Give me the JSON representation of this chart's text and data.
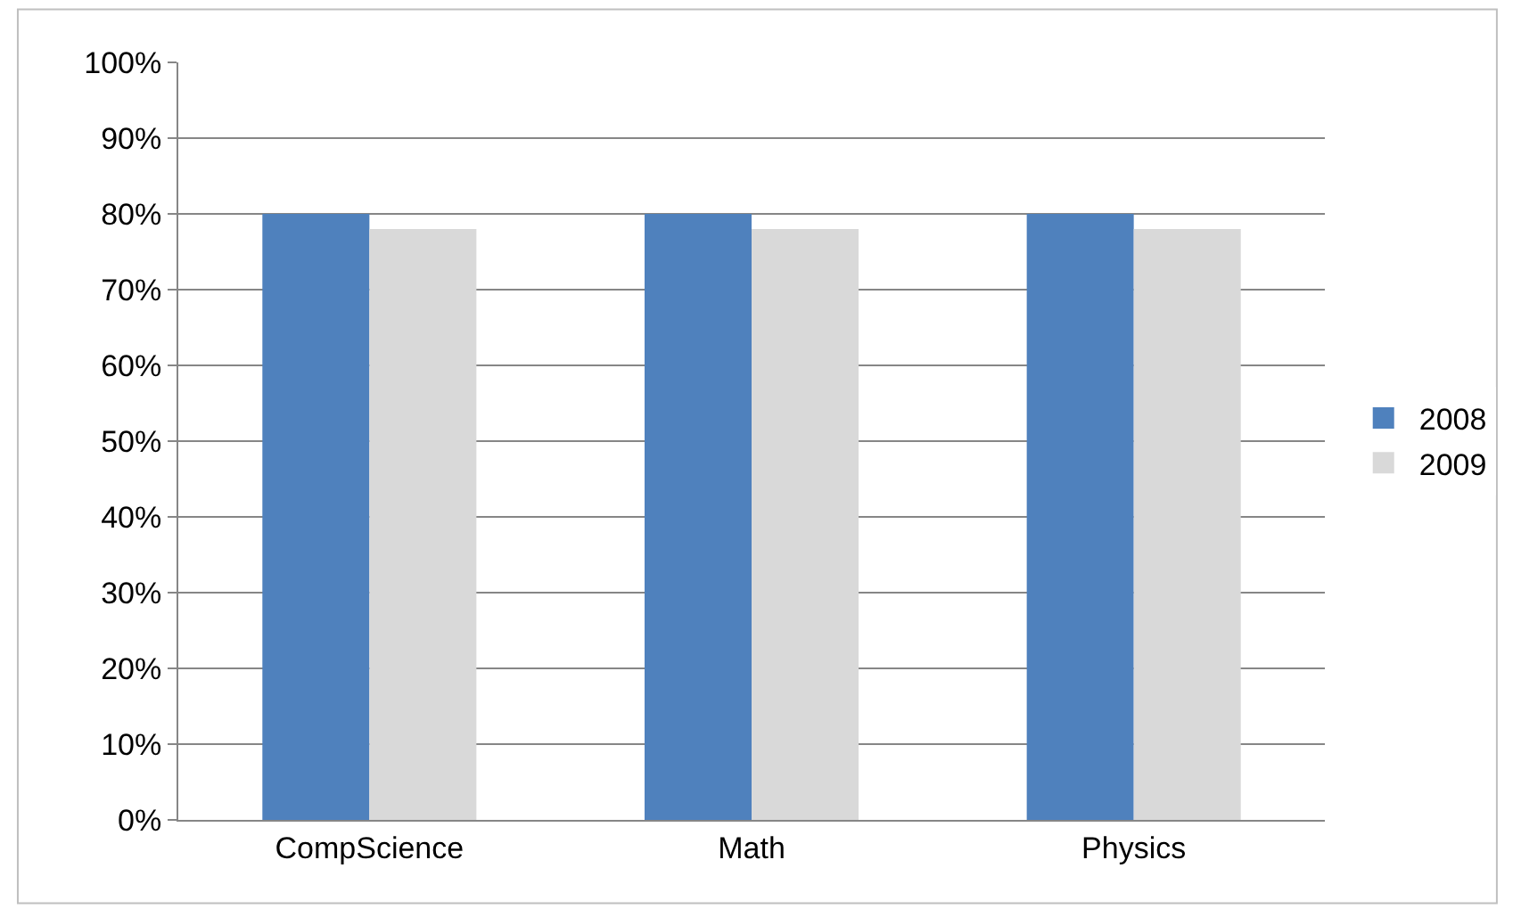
{
  "chart_data": {
    "type": "bar",
    "categories": [
      "CompScience",
      "Math",
      "Physics"
    ],
    "series": [
      {
        "name": "2008",
        "color": "#4f81bd",
        "values": [
          80,
          80,
          80
        ]
      },
      {
        "name": "2009",
        "color": "#d9d9d9",
        "values": [
          78,
          78,
          78
        ]
      }
    ],
    "ylim": [
      0,
      100
    ],
    "yticks": [
      {
        "value": 0,
        "label": "0%"
      },
      {
        "value": 10,
        "label": "10%"
      },
      {
        "value": 20,
        "label": "20%"
      },
      {
        "value": 30,
        "label": "30%"
      },
      {
        "value": 40,
        "label": "40%"
      },
      {
        "value": 50,
        "label": "50%"
      },
      {
        "value": 60,
        "label": "60%"
      },
      {
        "value": 70,
        "label": "70%"
      },
      {
        "value": 80,
        "label": "80%"
      },
      {
        "value": 90,
        "label": "90%"
      },
      {
        "value": 100,
        "label": "100%"
      }
    ],
    "grid": "y",
    "legend": "right"
  }
}
